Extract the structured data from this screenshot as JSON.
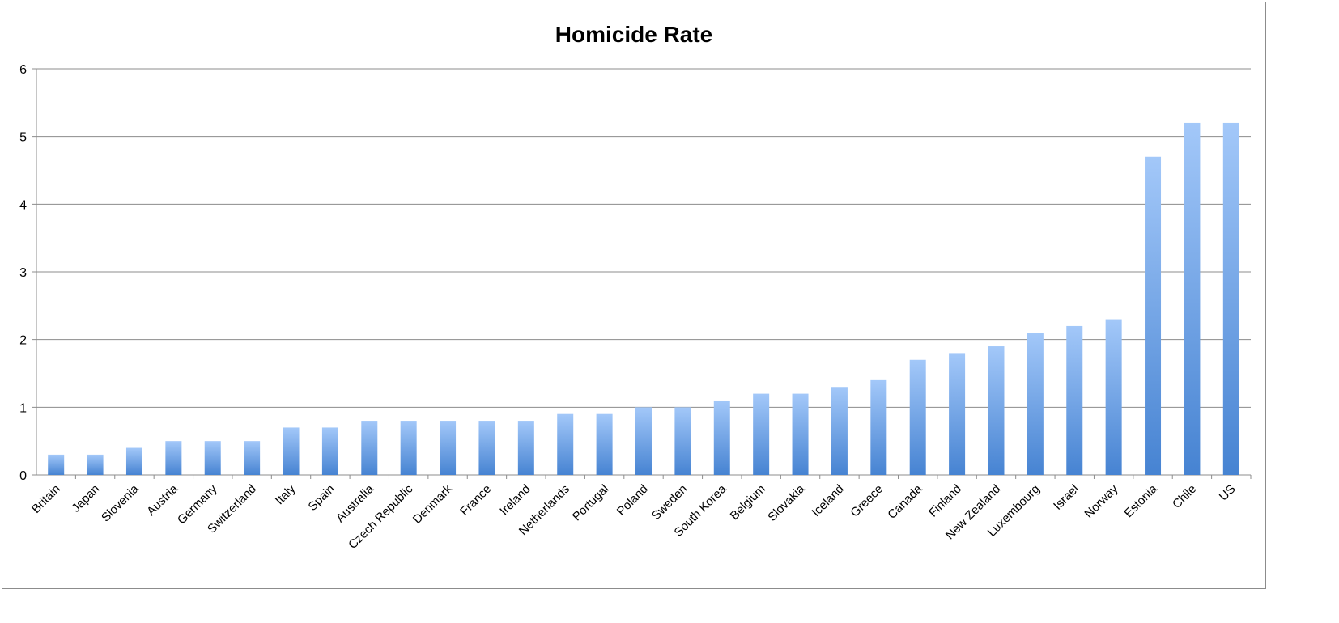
{
  "chart_data": {
    "type": "bar",
    "title": "Homicide Rate",
    "xlabel": "",
    "ylabel": "",
    "ylim": [
      0,
      6
    ],
    "yticks": [
      0,
      1,
      2,
      3,
      4,
      5,
      6
    ],
    "grid": true,
    "legend": "none",
    "categories": [
      "Britain",
      "Japan",
      "Slovenia",
      "Austria",
      "Germany",
      "Switzerland",
      "Italy",
      "Spain",
      "Australia",
      "Czech Republic",
      "Denmark",
      "France",
      "Ireland",
      "Netherlands",
      "Portugal",
      "Poland",
      "Sweden",
      "South Korea",
      "Belgium",
      "Slovakia",
      "Iceland",
      "Greece",
      "Canada",
      "Finland",
      "New Zealand",
      "Luxembourg",
      "Israel",
      "Norway",
      "Estonia",
      "Chile",
      "US"
    ],
    "values": [
      0.3,
      0.3,
      0.4,
      0.5,
      0.5,
      0.5,
      0.7,
      0.7,
      0.8,
      0.8,
      0.8,
      0.8,
      0.8,
      0.9,
      0.9,
      1.0,
      1.0,
      1.1,
      1.2,
      1.2,
      1.3,
      1.4,
      1.7,
      1.8,
      1.9,
      2.1,
      2.2,
      2.3,
      4.7,
      5.2,
      5.2
    ],
    "colors": {
      "bar_top": "#a3c8f9",
      "bar_bottom": "#4683d2",
      "grid": "#8c8c8c"
    }
  }
}
